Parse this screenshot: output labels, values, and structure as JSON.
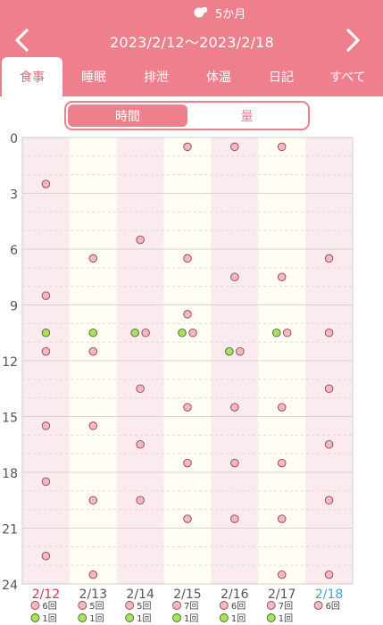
{
  "header": {
    "age_label": "5か月",
    "date_range": "2023/2/12〜2023/2/18",
    "tabs": [
      {
        "label": "食事",
        "active": true
      },
      {
        "label": "睡眠",
        "active": false
      },
      {
        "label": "排泄",
        "active": false
      },
      {
        "label": "体温",
        "active": false
      },
      {
        "label": "日記",
        "active": false
      },
      {
        "label": "すべて",
        "active": false
      }
    ]
  },
  "segment": {
    "time_label": "時間",
    "amount_label": "量",
    "selected": "時間"
  },
  "colors": {
    "accent": "#ee7f8d",
    "today": "#4a9fd8",
    "pink_dot": "#f6b7c0",
    "green_dot": "#a8e05f"
  },
  "icons": {
    "prev": "chevron-left-icon",
    "next": "chevron-right-icon",
    "baby": "baby-icon"
  },
  "chart_data": {
    "type": "scatter",
    "ylim": [
      0,
      24
    ],
    "yticks": [
      0,
      3,
      6,
      9,
      12,
      15,
      18,
      21,
      24
    ],
    "y_inverted": true,
    "grid": true,
    "days": [
      {
        "date": "2/12",
        "highlight": "red",
        "pink": [
          2.5,
          8.5,
          11.5,
          15.5,
          18.5,
          22.5
        ],
        "green": [
          10.5
        ],
        "pink_count": "6回",
        "green_count": "1回"
      },
      {
        "date": "2/13",
        "highlight": "none",
        "pink": [
          6.5,
          11.5,
          15.5,
          19.5,
          23.5
        ],
        "green": [
          10.5
        ],
        "pink_count": "5回",
        "green_count": "1回"
      },
      {
        "date": "2/14",
        "highlight": "none",
        "pink": [
          5.5,
          10.5,
          13.5,
          16.5,
          19.5
        ],
        "green": [
          10.5
        ],
        "pink_count": "5回",
        "green_count": "1回"
      },
      {
        "date": "2/15",
        "highlight": "none",
        "pink": [
          0.5,
          6.5,
          9.5,
          10.5,
          14.5,
          17.5,
          20.5
        ],
        "green": [
          10.5
        ],
        "pink_count": "7回",
        "green_count": "1回"
      },
      {
        "date": "2/16",
        "highlight": "none",
        "pink": [
          0.5,
          7.5,
          11.5,
          14.5,
          17.5,
          20.5
        ],
        "green": [
          11.5
        ],
        "pink_count": "6回",
        "green_count": "1回"
      },
      {
        "date": "2/17",
        "highlight": "none",
        "pink": [
          0.5,
          7.5,
          10.5,
          14.5,
          17.5,
          20.5,
          23.5
        ],
        "green": [
          10.5
        ],
        "pink_count": "7回",
        "green_count": "1回"
      },
      {
        "date": "2/18",
        "highlight": "blue",
        "pink": [
          6.5,
          10.5,
          13.5,
          16.5,
          19.5,
          23.5
        ],
        "green": [],
        "pink_count": "6回",
        "green_count": ""
      }
    ]
  }
}
